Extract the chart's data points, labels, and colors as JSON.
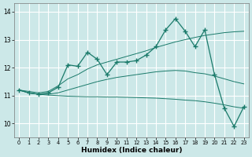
{
  "xlabel": "Humidex (Indice chaleur)",
  "x": [
    0,
    1,
    2,
    3,
    4,
    5,
    6,
    7,
    8,
    9,
    10,
    11,
    12,
    13,
    14,
    15,
    16,
    17,
    18,
    19,
    20,
    21,
    22,
    23
  ],
  "line_main": [
    11.2,
    11.1,
    11.05,
    11.1,
    11.3,
    12.1,
    12.05,
    12.55,
    12.3,
    11.75,
    12.2,
    12.2,
    12.25,
    12.45,
    12.75,
    13.35,
    13.75,
    13.3,
    12.75,
    13.35,
    11.75,
    10.55,
    9.9,
    10.6
  ],
  "line_trend_up": [
    11.2,
    11.15,
    11.1,
    11.15,
    11.35,
    11.6,
    11.75,
    11.95,
    12.1,
    12.2,
    12.3,
    12.4,
    12.5,
    12.6,
    12.72,
    12.82,
    12.92,
    13.0,
    13.08,
    13.15,
    13.2,
    13.25,
    13.28,
    13.3
  ],
  "line_trend_mid": [
    11.2,
    11.1,
    11.05,
    11.05,
    11.1,
    11.2,
    11.3,
    11.4,
    11.5,
    11.58,
    11.65,
    11.7,
    11.75,
    11.8,
    11.85,
    11.88,
    11.9,
    11.88,
    11.82,
    11.78,
    11.7,
    11.6,
    11.5,
    11.42
  ],
  "line_trend_low": [
    11.2,
    11.1,
    11.05,
    11.02,
    11.0,
    10.98,
    10.97,
    10.96,
    10.96,
    10.95,
    10.95,
    10.94,
    10.93,
    10.92,
    10.91,
    10.89,
    10.87,
    10.84,
    10.82,
    10.78,
    10.73,
    10.67,
    10.6,
    10.55
  ],
  "color": "#1a7a6a",
  "bg_color": "#cce8e8",
  "grid_color": "#ffffff",
  "ylim": [
    9.5,
    14.3
  ],
  "yticks": [
    10,
    11,
    12,
    13,
    14
  ],
  "xlim": [
    -0.5,
    23.5
  ]
}
